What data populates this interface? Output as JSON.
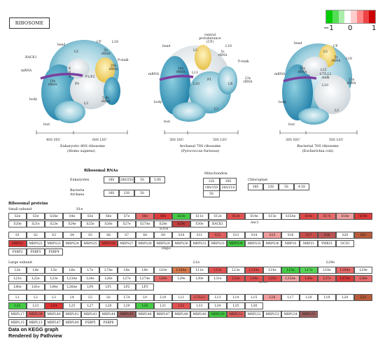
{
  "title": "RIBOSOME",
  "legend": {
    "ticks": [
      "−1",
      "0",
      "1"
    ],
    "colors": [
      "#00cc00",
      "#55dd55",
      "#aaeeaa",
      "#ffffff",
      "#ffcccc",
      "#ff8888",
      "#ee4444",
      "#cc0000"
    ]
  },
  "ribosome_labels": {
    "euk": {
      "head": "head",
      "cp": "CP",
      "l18": "L18",
      "l5": "L5",
      "rrna5s": "5s rRNA",
      "pstalk": "P-stalk",
      "rack1": "RACK1",
      "rrna28s": "28s rRNA",
      "mrna": "mRNA",
      "e": "E",
      "p": "P",
      "a": "A",
      "p0": "P0",
      "p1p2": "P1/P2",
      "rrna18s": "18s rRNA",
      "body": "body",
      "l3": "L3",
      "rrna58s": "5.8s rRNA",
      "foot": "foot",
      "ssu": "40S SSU",
      "lsu": "60S LSU",
      "caption": [
        "Eukaryotic 80S ribosome",
        "(Homo sapiens)"
      ]
    },
    "arc": {
      "head": "head",
      "cp": "central protuberance (CP)",
      "l18": "L18",
      "l5": "L5",
      "rrna5s": "5s rRNA",
      "pstalk": "P-stalk",
      "mrna": "mRNA",
      "rrna16s": "16s rRNA",
      "l11": "L11",
      "l10": "L10",
      "p1": "P1",
      "lx": "LX",
      "rrna23s": "23s rRNA",
      "body": "body",
      "l3": "L3",
      "foot": "foot",
      "ssu": "30S SSU",
      "lsu": "50S LSU",
      "caption": [
        "Archaeal 70S ribosome",
        "(Pyrococcus furiosus)"
      ]
    },
    "bac": {
      "head": "head",
      "cp": "CP",
      "l5": "L5",
      "rrna5s": "5s rRNA",
      "l18": "L18",
      "mrna": "mRNA",
      "rrna16s": "16s rRNA",
      "l11": "L11",
      "l712": "L7/L12 stalk",
      "l10": "L10",
      "rrna23s": "23s rRNA",
      "body": "body",
      "l3": "L3",
      "foot": "foot",
      "ssu": "30S SSU",
      "lsu": "50S LSU",
      "caption": [
        "Bacterial 70S ribosome",
        "(Escherichia coli)"
      ]
    }
  },
  "rrna": {
    "title": "Ribosomal RNAs",
    "eukaryotes_label": "Eukaryotes",
    "eukaryotes": [
      "18S",
      "28S/25S",
      "5S",
      "5.8S"
    ],
    "bacteria_label": "Bacteria Archaea",
    "bacteria": [
      "16S",
      "23S",
      "5S"
    ],
    "mito_label": "Mitochondria",
    "mito": [
      "12S",
      "16S",
      "18S/15S",
      "26S/21S",
      "5S"
    ],
    "chloro_label": "Chloroplast",
    "chloro": [
      "16S",
      "23S",
      "5S",
      "4.5S"
    ]
  },
  "proteins": {
    "title": "Ribosomal proteins",
    "small_label": "Small subunit",
    "large_label": "Large subunit",
    "extra_labels": {
      "s1e": "S1e",
      "asc1": "Asc1",
      "s31e": "S31e",
      "dap3": "Dap3",
      "l1e": "L1e",
      "l29e": "L29e",
      "l13e": "L13e"
    },
    "small_rows": [
      [
        [
          "S2e",
          ""
        ],
        [
          "S3e",
          ""
        ],
        [
          "S3Ae",
          ""
        ],
        [
          "S4e",
          ""
        ],
        [
          "S5e",
          ""
        ],
        [
          "S6e",
          ""
        ],
        [
          "S7e",
          ""
        ],
        [
          "S8e",
          "#e86a6a"
        ],
        [
          "S9e",
          "#dd3a3a"
        ],
        [
          "S10e",
          "#44cc44"
        ],
        [
          "S11e",
          ""
        ],
        [
          "S12e",
          ""
        ],
        [
          "S13e",
          "#e25252"
        ],
        [
          "S14e",
          ""
        ],
        [
          "S15e",
          ""
        ],
        [
          "S15Ae",
          ""
        ],
        [
          "S16e",
          "#e04848"
        ],
        [
          "S17e",
          "#e86a6a"
        ],
        [
          "S18e",
          "#f0a0a0"
        ],
        [
          "S19e",
          "#dd3a3a"
        ]
      ],
      [
        [
          "S20e",
          ""
        ],
        [
          "S21e",
          ""
        ],
        [
          "S23e",
          ""
        ],
        [
          "S24e",
          ""
        ],
        [
          "S25e",
          ""
        ],
        [
          "S26e",
          ""
        ],
        [
          "S27e",
          ""
        ],
        [
          "S27Ae",
          ""
        ],
        [
          "S28e",
          ""
        ],
        [
          "S29e",
          "#c04040"
        ],
        [
          "S30e",
          ""
        ],
        [
          "RACK1",
          ""
        ]
      ],
      [
        [
          "S1",
          ""
        ],
        [
          "S2",
          ""
        ],
        [
          "S3",
          ""
        ],
        [
          "S4",
          ""
        ],
        [
          "S5",
          ""
        ],
        [
          "S6",
          ""
        ],
        [
          "S7",
          ""
        ],
        [
          "S8",
          ""
        ],
        [
          "S9",
          ""
        ],
        [
          "S10",
          ""
        ],
        [
          "S11",
          ""
        ],
        [
          "S12",
          "#e06060"
        ],
        [
          "S13",
          ""
        ],
        [
          "S14",
          ""
        ],
        [
          "S15",
          "#ef9d9d"
        ],
        [
          "S16",
          ""
        ],
        [
          "S17",
          "#c84e4e"
        ],
        [
          "S18",
          "#bb5555"
        ],
        [
          "S20",
          ""
        ],
        [
          "S21",
          "#b85a3a"
        ]
      ],
      [
        [
          "MRPS2",
          "#dd3a3a"
        ],
        [
          "MRPS22",
          ""
        ],
        [
          "MRPS23",
          ""
        ],
        [
          "MRPS24",
          ""
        ],
        [
          "MRPS25",
          ""
        ],
        [
          "MRPS26",
          "#e04040"
        ],
        [
          "MRPS27",
          ""
        ],
        [
          "MRPS28",
          ""
        ],
        [
          "MRPS29",
          ""
        ],
        [
          "MRPS30",
          ""
        ],
        [
          "MRPS31",
          ""
        ],
        [
          "MRPS33",
          ""
        ],
        [
          "MRPS34",
          "#44cc44"
        ],
        [
          "MRPS35",
          ""
        ],
        [
          "MRPS36",
          ""
        ],
        [
          "MRP10",
          ""
        ],
        [
          "MRP21",
          ""
        ],
        [
          "YMR31",
          ""
        ],
        [
          "OCD1",
          ""
        ]
      ],
      [
        [
          "PSRP2",
          ""
        ],
        [
          "PSRP3",
          ""
        ],
        [
          "PSRP4",
          ""
        ]
      ]
    ],
    "large_rows": [
      [
        [
          "L3e",
          ""
        ],
        [
          "L4e",
          ""
        ],
        [
          "L5e",
          ""
        ],
        [
          "L6e",
          ""
        ],
        [
          "L7e",
          ""
        ],
        [
          "L7Ae",
          ""
        ],
        [
          "L8e",
          ""
        ],
        [
          "L9e",
          ""
        ],
        [
          "L10e",
          ""
        ],
        [
          "L10Ae",
          "#d97a4a"
        ],
        [
          "L11e",
          ""
        ],
        [
          "L12e",
          "#e25252"
        ],
        [
          "L13e",
          ""
        ],
        [
          "L13Ae",
          "#e25252"
        ],
        [
          "L14e",
          ""
        ],
        [
          "L15e",
          "#44cc44"
        ],
        [
          "L17e",
          "#55d455"
        ],
        [
          "L18e",
          ""
        ],
        [
          "L18Ae",
          "#e86a6a"
        ],
        [
          "L19e",
          ""
        ]
      ],
      [
        [
          "L21e",
          ""
        ],
        [
          "L22e",
          ""
        ],
        [
          "L23e",
          ""
        ],
        [
          "L23Ae",
          ""
        ],
        [
          "L24e",
          ""
        ],
        [
          "L26e",
          ""
        ],
        [
          "L27e",
          ""
        ],
        [
          "L27Ae",
          ""
        ],
        [
          "L28e",
          "#e86a6a"
        ],
        [
          "L29e",
          ""
        ],
        [
          "L30e",
          ""
        ],
        [
          "L31e",
          ""
        ],
        [
          "L32e",
          "#e25252"
        ],
        [
          "L34e",
          "#e25252"
        ],
        [
          "L35e",
          "#e25252"
        ],
        [
          "L35Ae",
          "#f0a0a0"
        ],
        [
          "L36e",
          "#e25252"
        ],
        [
          "L37e",
          "#e86a6a"
        ],
        [
          "L37Ae",
          "#dd3a3a"
        ],
        [
          "L38e",
          "#e86a6a"
        ]
      ],
      [
        [
          "L40e",
          ""
        ],
        [
          "L41e",
          ""
        ],
        [
          "L44e",
          ""
        ],
        [
          "L36Ae",
          ""
        ],
        [
          "LP0",
          ""
        ],
        [
          "LP1",
          ""
        ],
        [
          "LP2",
          ""
        ],
        [
          "LP3",
          ""
        ]
      ],
      [
        [
          "L1",
          ""
        ],
        [
          "L2",
          ""
        ],
        [
          "L3",
          ""
        ],
        [
          "L4",
          ""
        ],
        [
          "L5",
          ""
        ],
        [
          "L6",
          ""
        ],
        [
          "L7A",
          ""
        ],
        [
          "L9",
          ""
        ],
        [
          "L10",
          ""
        ],
        [
          "L11",
          ""
        ],
        [
          "L7/L12",
          "#e06060"
        ],
        [
          "L13",
          ""
        ],
        [
          "L14",
          ""
        ],
        [
          "L15",
          ""
        ],
        [
          "L16",
          "#ef9d9d"
        ],
        [
          "L17",
          ""
        ],
        [
          "L18",
          ""
        ],
        [
          "L19",
          ""
        ],
        [
          "L20",
          ""
        ],
        [
          "L21",
          "#b85a3a"
        ]
      ],
      [
        [
          "L22",
          "#44cc44"
        ],
        [
          "L23",
          ""
        ],
        [
          "L24",
          "#dd3030"
        ],
        [
          "L25",
          ""
        ],
        [
          "L27",
          ""
        ],
        [
          "L28",
          ""
        ],
        [
          "L29",
          ""
        ],
        [
          "L30",
          "#44cc44"
        ],
        [
          "L31",
          ""
        ],
        [
          "L32",
          "#e25252"
        ],
        [
          "L33",
          ""
        ],
        [
          "L34",
          ""
        ],
        [
          "L35",
          ""
        ],
        [
          "L36",
          ""
        ]
      ],
      [
        [
          "MRPL17",
          ""
        ],
        [
          "MRPL39",
          "#e06060"
        ],
        [
          "MRPL40",
          ""
        ],
        [
          "MRPL41",
          ""
        ],
        [
          "MRPL43",
          ""
        ],
        [
          "MRPL44",
          ""
        ],
        [
          "MRPL45",
          "#a06060"
        ],
        [
          "MRPL46",
          ""
        ],
        [
          "MRPL47",
          ""
        ],
        [
          "MRPL48",
          ""
        ],
        [
          "MRPL49",
          ""
        ],
        [
          "MRPL50",
          "#44cc44"
        ],
        [
          "MRPL51",
          "#e06060"
        ],
        [
          "MRPL52",
          ""
        ],
        [
          "MRPL53",
          ""
        ],
        [
          "MRPL54",
          ""
        ],
        [
          "MRPL55",
          "#a06060"
        ]
      ],
      [
        [
          "MRPL15",
          ""
        ],
        [
          "MRPL13",
          ""
        ],
        [
          "MRPL47",
          ""
        ],
        [
          "MRPL49",
          ""
        ],
        [
          "PSRP5",
          ""
        ],
        [
          "PSRP6",
          ""
        ]
      ]
    ]
  },
  "footer": [
    "Data on KEGG graph",
    "Rendered by Pathview"
  ]
}
